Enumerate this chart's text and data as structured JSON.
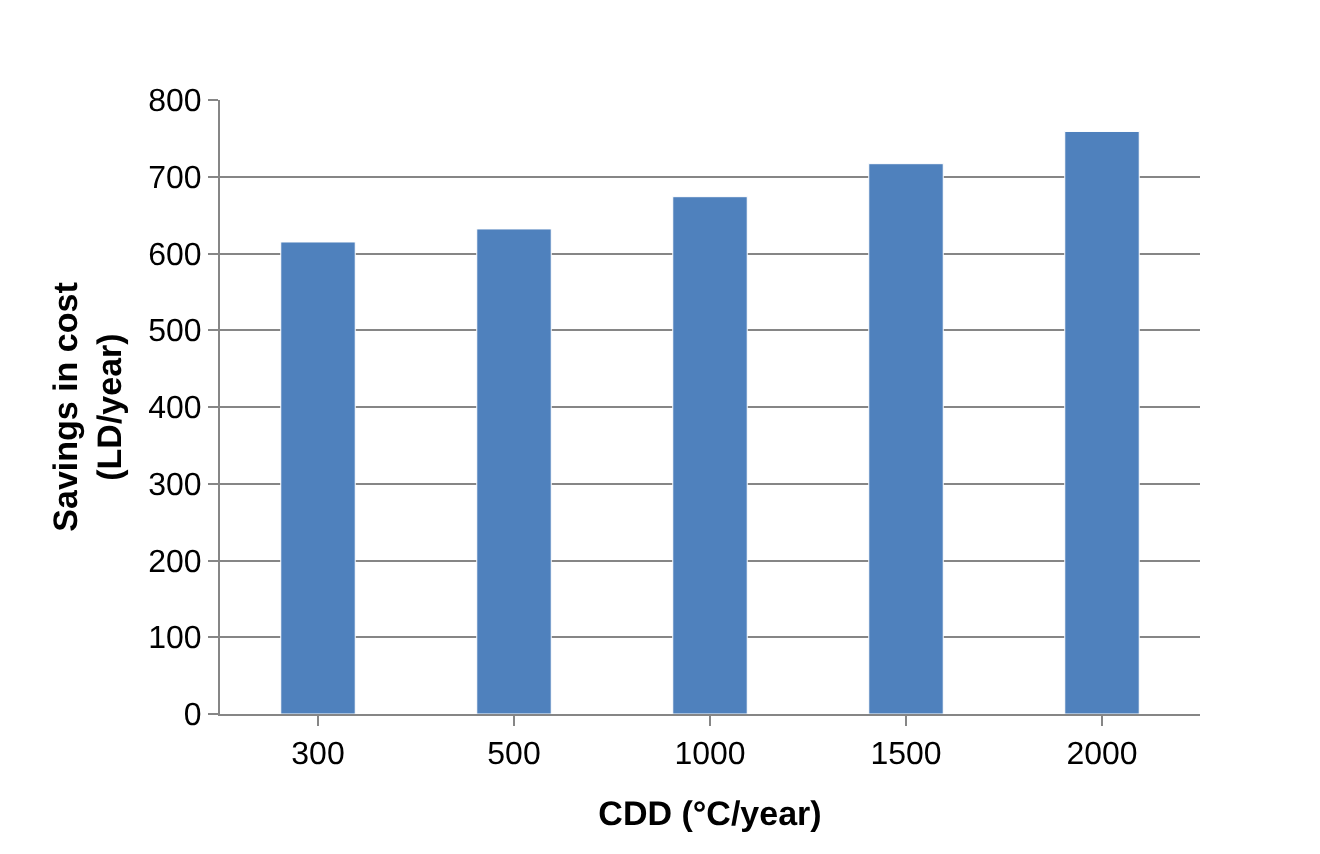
{
  "chart_data": {
    "type": "bar",
    "categories": [
      "300",
      "500",
      "1000",
      "1500",
      "2000"
    ],
    "values": [
      615,
      632,
      674,
      717,
      759
    ],
    "color": "#4f81bd",
    "xlabel": "CDD (°C/year)",
    "ylabel": "Savings in cost\n(LD/year)",
    "ylim": [
      0,
      800
    ],
    "yticks": [
      0,
      100,
      200,
      300,
      400,
      500,
      600,
      700,
      800
    ],
    "grid": "y",
    "legend": false
  }
}
